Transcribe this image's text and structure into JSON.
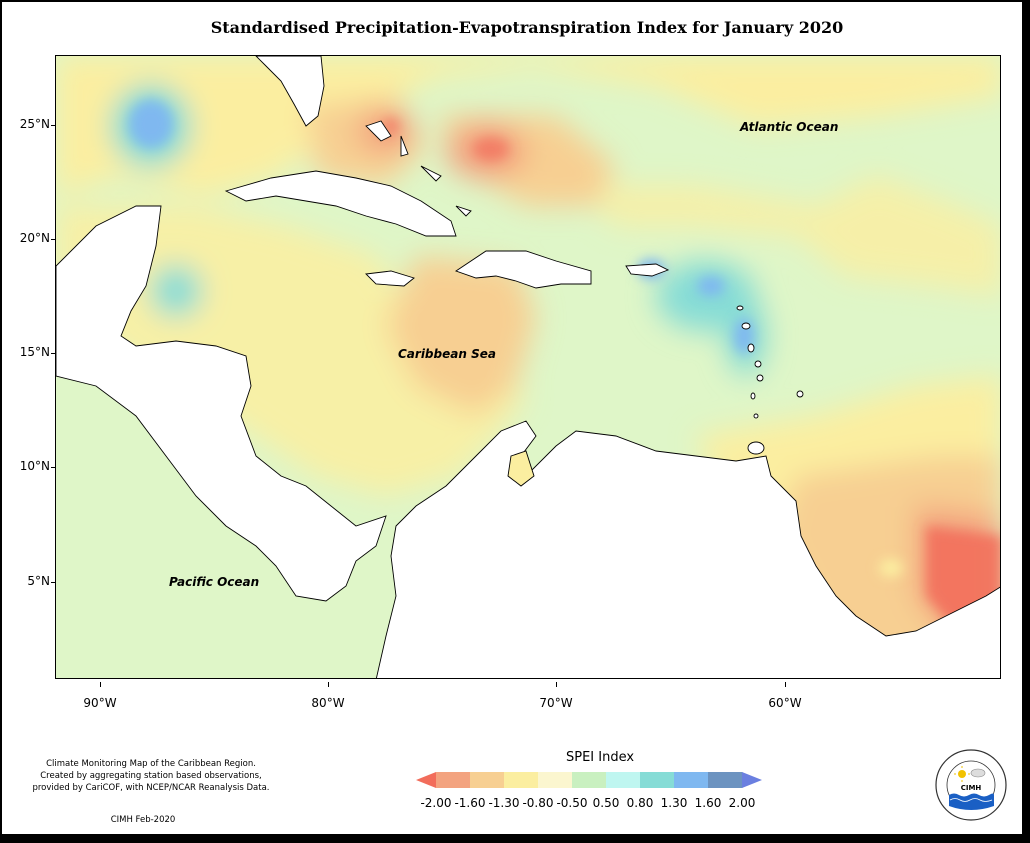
{
  "title": "Standardised Precipitation-Evapotranspiration Index for January 2020",
  "map": {
    "ocean_labels": [
      "Atlantic Ocean",
      "Caribbean Sea",
      "Pacific Ocean"
    ],
    "lat_ticks": [
      "25°N",
      "20°N",
      "15°N",
      "10°N",
      "5°N"
    ],
    "lon_ticks": [
      "90°W",
      "80°W",
      "70°W",
      "60°W"
    ]
  },
  "legend": {
    "title": "SPEI Index",
    "labels": [
      "-2.00",
      "-1.60",
      "-1.30",
      "-0.80",
      "-0.50",
      "0.50",
      "0.80",
      "1.30",
      "1.60",
      "2.00"
    ],
    "colors": [
      "#f26d5b",
      "#f3a37f",
      "#f7cf92",
      "#fbeea0",
      "#fbf6cf",
      "#c9f0c0",
      "#bff6f0",
      "#86dcd6",
      "#7fb8f0",
      "#6c93c0",
      "#6a7fe0"
    ]
  },
  "credits": {
    "line1": "Climate Monitoring Map of the Caribbean Region.",
    "line2": "Created by aggregating station based observations,",
    "line3": "provided by CariCOF, with NCEP/NCAR Reanalysis Data.",
    "date": "CIMH Feb-2020"
  },
  "logo": {
    "text": "CIMH",
    "ring_text": "Caribbean Institute for Meteorology and Hydrology"
  }
}
